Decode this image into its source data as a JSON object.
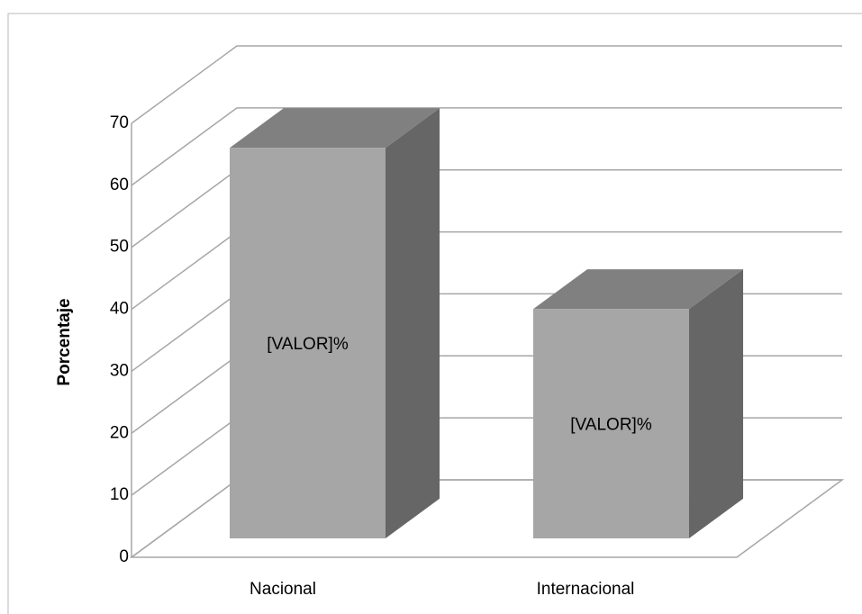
{
  "chart_data": {
    "type": "bar",
    "categories": [
      "Nacional",
      "Internacional"
    ],
    "values": [
      63,
      37
    ],
    "value_labels": [
      "[VALOR]%",
      "[VALOR]%"
    ],
    "color": "#a6a6a6",
    "y_label": "Porcentaje",
    "ylim": [
      0,
      70
    ],
    "yticks": [
      0,
      10,
      20,
      30,
      40,
      50,
      60,
      70
    ],
    "grid": true
  }
}
